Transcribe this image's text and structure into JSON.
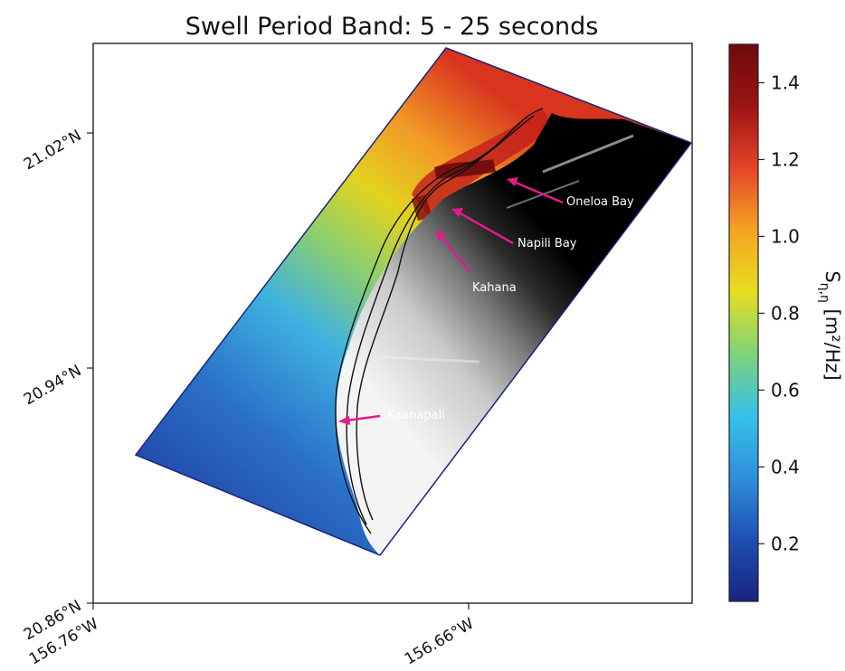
{
  "chart_data": {
    "type": "heatmap",
    "title": "Swell Period Band: 5 - 25 seconds",
    "xlabel": "",
    "ylabel": "",
    "x_ticks": [
      "156.76°W",
      "156.66°W"
    ],
    "y_ticks": [
      "21.02°N",
      "20.94°N",
      "20.86°N"
    ],
    "colorbar": {
      "label": "S_{η,η} [m²/Hz]",
      "label_main": "S",
      "label_sub": "η,η",
      "label_unit": " [m²/Hz]",
      "range": [
        0.05,
        1.5
      ],
      "ticks": [
        "0.2",
        "0.4",
        "0.6",
        "0.8",
        "1.0",
        "1.2",
        "1.4"
      ],
      "colormap": "jet",
      "colors": [
        "#1a237e",
        "#1f4fb4",
        "#2f8fdc",
        "#35c1e8",
        "#7fd27a",
        "#e7de1f",
        "#f5a323",
        "#e5442a",
        "#9c1414",
        "#6b0b0b"
      ]
    },
    "annotations": [
      {
        "label": "Oneloa Bay",
        "color": "#e6198c"
      },
      {
        "label": "Napili Bay",
        "color": "#e6198c"
      },
      {
        "label": "Kahana",
        "color": "#e6198c"
      },
      {
        "label": "Kaanapali",
        "color": "#e6198c"
      }
    ],
    "land_shading": "grayscale elevation",
    "grid": false
  }
}
